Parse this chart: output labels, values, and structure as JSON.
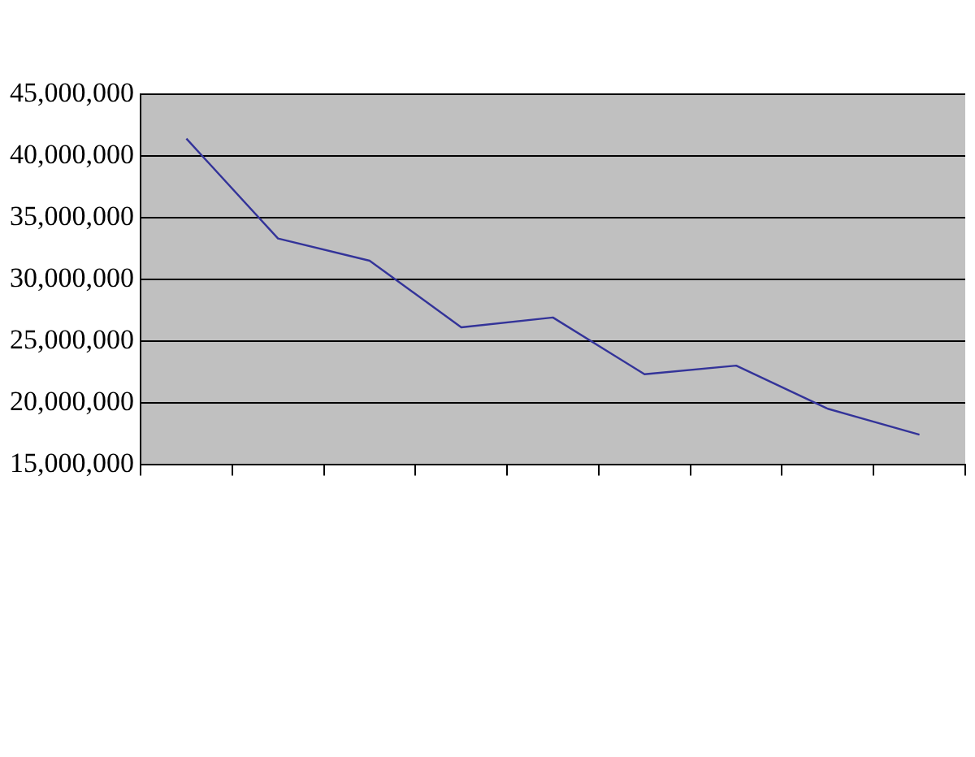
{
  "chart_data": {
    "type": "line",
    "categories": [
      null,
      null,
      null,
      null,
      null,
      null,
      null,
      null,
      null
    ],
    "series": [
      {
        "color": "#333399",
        "values": [
          41400000.0,
          33300000.0,
          31500000.0,
          26100000.0,
          26900000.0,
          22300000.0,
          23000000.0,
          19500000.0,
          17400000.0
        ]
      }
    ],
    "ylim": [
      15000000,
      45000000
    ],
    "yticks": [
      {
        "value": 15000000,
        "label": "15,000,000"
      },
      {
        "value": 20000000,
        "label": "20,000,000"
      },
      {
        "value": 25000000,
        "label": "25,000,000"
      },
      {
        "value": 30000000,
        "label": "30,000,000"
      },
      {
        "value": 35000000,
        "label": "35,000,000"
      },
      {
        "value": 40000000,
        "label": "40,000,000"
      },
      {
        "value": 45000000,
        "label": "45,000,000"
      }
    ],
    "grid": "y",
    "legend": false,
    "marker": "none",
    "line_style": "solid",
    "tick_labels": "y"
  }
}
